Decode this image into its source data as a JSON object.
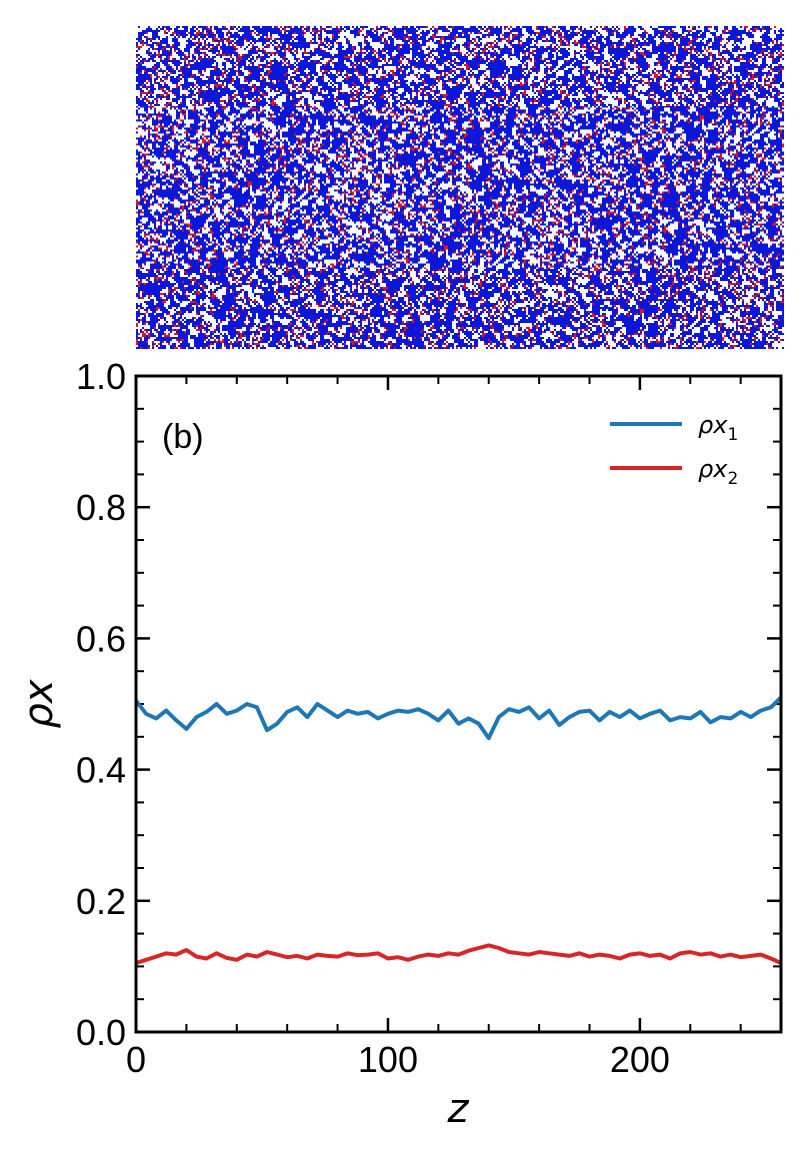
{
  "snapshot": {
    "description_name": "lattice-configuration-snapshot",
    "colors": {
      "species_1": "#0a17d9",
      "species_2": "#e0141e",
      "empty": "#ffffff"
    }
  },
  "chart_data": {
    "type": "line",
    "panel_label": "(b)",
    "xlabel": "z",
    "ylabel": "ρx",
    "xlim": [
      0,
      256
    ],
    "ylim": [
      0.0,
      1.0
    ],
    "xticks": [
      0,
      100,
      200
    ],
    "xtick_labels": [
      "0",
      "100",
      "200"
    ],
    "yticks": [
      0.0,
      0.2,
      0.4,
      0.6,
      0.8,
      1.0
    ],
    "ytick_labels": [
      "0.0",
      "0.2",
      "0.4",
      "0.6",
      "0.8",
      "1.0"
    ],
    "legend_position": "top-right",
    "series": [
      {
        "name": "ρx1",
        "label_base": "ρx",
        "label_sub": "1",
        "color": "#1f77b4",
        "x": [
          0,
          4,
          8,
          12,
          16,
          20,
          24,
          28,
          32,
          36,
          40,
          44,
          48,
          52,
          56,
          60,
          64,
          68,
          72,
          76,
          80,
          84,
          88,
          92,
          96,
          100,
          104,
          108,
          112,
          116,
          120,
          124,
          128,
          132,
          136,
          140,
          144,
          148,
          152,
          156,
          160,
          164,
          168,
          172,
          176,
          180,
          184,
          188,
          192,
          196,
          200,
          204,
          208,
          212,
          216,
          220,
          224,
          228,
          232,
          236,
          240,
          244,
          248,
          252,
          256
        ],
        "values": [
          0.505,
          0.485,
          0.478,
          0.49,
          0.475,
          0.462,
          0.48,
          0.488,
          0.5,
          0.485,
          0.49,
          0.5,
          0.495,
          0.46,
          0.47,
          0.488,
          0.495,
          0.48,
          0.5,
          0.49,
          0.48,
          0.49,
          0.485,
          0.488,
          0.478,
          0.485,
          0.49,
          0.488,
          0.492,
          0.485,
          0.475,
          0.49,
          0.47,
          0.478,
          0.47,
          0.448,
          0.48,
          0.492,
          0.488,
          0.495,
          0.478,
          0.49,
          0.468,
          0.48,
          0.488,
          0.49,
          0.475,
          0.488,
          0.48,
          0.49,
          0.478,
          0.485,
          0.49,
          0.475,
          0.48,
          0.478,
          0.488,
          0.472,
          0.48,
          0.478,
          0.488,
          0.48,
          0.49,
          0.495,
          0.51
        ]
      },
      {
        "name": "ρx2",
        "label_base": "ρx",
        "label_sub": "2",
        "color": "#d62728",
        "x": [
          0,
          4,
          8,
          12,
          16,
          20,
          24,
          28,
          32,
          36,
          40,
          44,
          48,
          52,
          56,
          60,
          64,
          68,
          72,
          76,
          80,
          84,
          88,
          92,
          96,
          100,
          104,
          108,
          112,
          116,
          120,
          124,
          128,
          132,
          136,
          140,
          144,
          148,
          152,
          156,
          160,
          164,
          168,
          172,
          176,
          180,
          184,
          188,
          192,
          196,
          200,
          204,
          208,
          212,
          216,
          220,
          224,
          228,
          232,
          236,
          240,
          244,
          248,
          252,
          256
        ],
        "values": [
          0.105,
          0.11,
          0.115,
          0.12,
          0.118,
          0.125,
          0.115,
          0.112,
          0.12,
          0.113,
          0.11,
          0.118,
          0.115,
          0.122,
          0.118,
          0.114,
          0.116,
          0.112,
          0.118,
          0.116,
          0.115,
          0.12,
          0.117,
          0.118,
          0.12,
          0.112,
          0.114,
          0.11,
          0.115,
          0.118,
          0.116,
          0.12,
          0.118,
          0.124,
          0.128,
          0.132,
          0.128,
          0.122,
          0.12,
          0.118,
          0.122,
          0.12,
          0.118,
          0.116,
          0.12,
          0.115,
          0.118,
          0.116,
          0.112,
          0.118,
          0.12,
          0.116,
          0.118,
          0.112,
          0.12,
          0.122,
          0.118,
          0.12,
          0.115,
          0.118,
          0.114,
          0.116,
          0.118,
          0.112,
          0.105
        ]
      }
    ]
  }
}
